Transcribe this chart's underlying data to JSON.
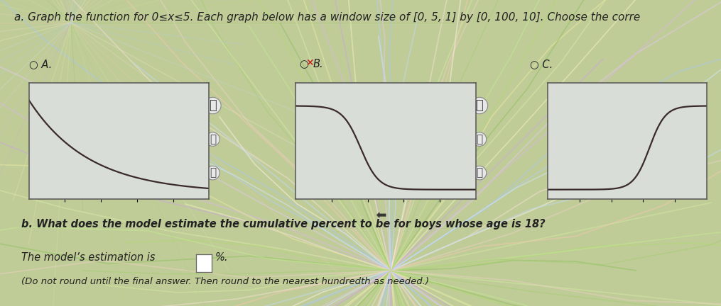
{
  "title_text": "a. Graph the function for 0≤x≤5. Each graph below has a window size of [0, 5, 1] by [0, 100, 10]. Choose the corre",
  "bg_color_center": "#e8f0d0",
  "bg_color_outer": "#b0c890",
  "text_color": "#222222",
  "curve_color": "#3a2a2a",
  "curve_linewidth": 1.6,
  "panel_edgecolor": "#555555",
  "panel_facecolor": "#d8ddd8",
  "title_fontsize": 11.0,
  "label_fontsize": 10.5,
  "note_fontsize": 9.5,
  "question_b": "b. What does the model estimate the cumulative percent to be for boys whose age is 18?",
  "note_line": "(Do not round until the final answer. Then round to the nearest hundredth as needed.)",
  "swirl_colors": [
    "#90c060",
    "#b0d870",
    "#c0e890",
    "#a8cc78",
    "#d0e8a0",
    "#e8d0c0",
    "#f0c8b0",
    "#f0e0d0",
    "#f8f0e0",
    "#c0d8f0",
    "#a8c8e8",
    "#b0ccf0",
    "#d0e4f8",
    "#e0c8e8",
    "#d8b8e0",
    "#c8a8d8",
    "#f0f0c0",
    "#e8e8a0",
    "#d8e8a8"
  ]
}
